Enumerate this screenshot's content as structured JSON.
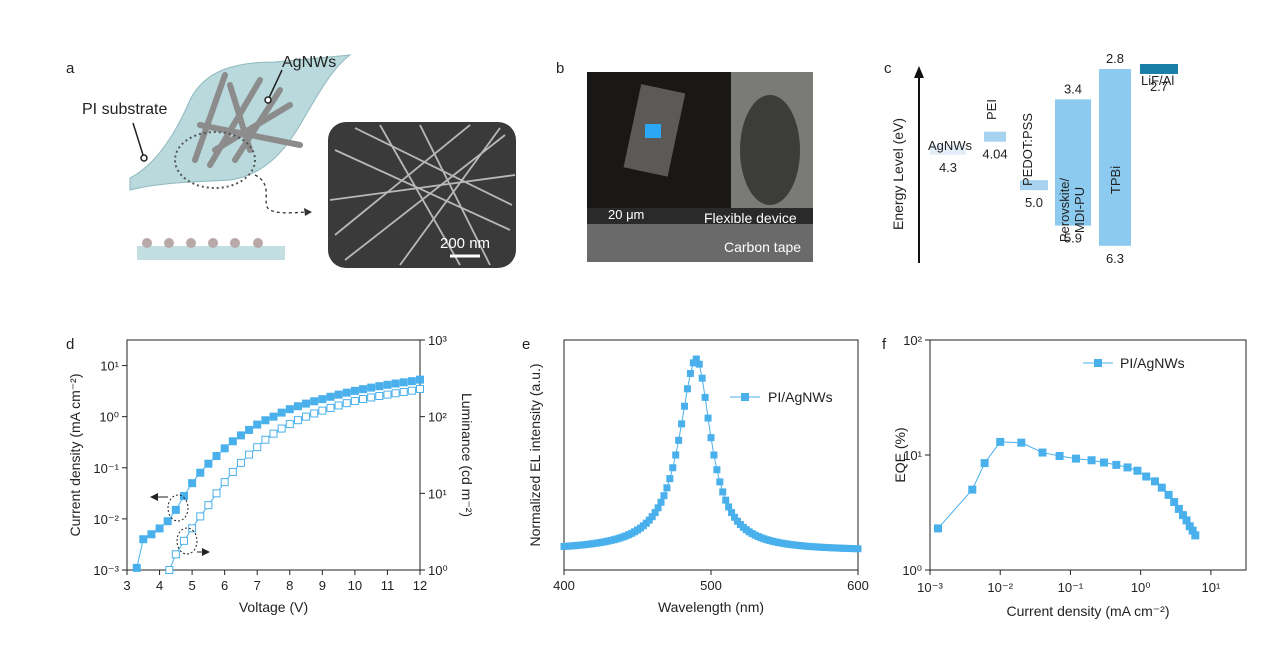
{
  "panels": {
    "a": {
      "label": "a",
      "agnws_label": "AgNWs",
      "pi_label": "PI substrate",
      "scalebar": "200 nm"
    },
    "b": {
      "label": "b",
      "scale_label": "20 μm",
      "device_label": "Flexible device",
      "tape_label": "Carbon tape"
    },
    "c": {
      "label": "c",
      "ylabel": "Energy Level (eV)",
      "layers": [
        {
          "name": "AgNWs",
          "top": 4.3,
          "bottom": null,
          "label_bottom": "4.3",
          "color": "#e3eef8"
        },
        {
          "name": "PEI",
          "top": 4.04,
          "bottom": null,
          "label_bottom": "4.04",
          "color": "#a8d3f0"
        },
        {
          "name": "PEDOT:PSS",
          "top": 5.0,
          "bottom": null,
          "label_bottom": "5.0",
          "color": "#a8d3f0"
        },
        {
          "name": "Perovskite/\nMDI-PU",
          "top": 3.4,
          "bottom": 5.9,
          "label_top": "3.4",
          "label_bottom": "5.9",
          "color": "#8ccaf0"
        },
        {
          "name": "TPBi",
          "top": 2.8,
          "bottom": 6.3,
          "label_top": "2.8",
          "label_bottom": "6.3",
          "color": "#8ccaf0"
        },
        {
          "name": "LiF/Al",
          "top": 2.7,
          "bottom": null,
          "label_bottom": "2.7",
          "color": "#1a7ea8"
        }
      ]
    }
  },
  "chart_data": [
    {
      "panel": "d",
      "type": "line",
      "xlabel": "Voltage (V)",
      "ylabel": "Current density (mA cm⁻²)",
      "y2label": "Luminance (cd m⁻²)",
      "xlim": [
        3,
        12
      ],
      "xticks": [
        "3",
        "4",
        "5",
        "6",
        "7",
        "8",
        "9",
        "10",
        "11",
        "12"
      ],
      "ylim_log": [
        -3,
        1.5
      ],
      "yticks": [
        "10⁻³",
        "10⁻²",
        "10⁻¹",
        "10⁰",
        "10¹"
      ],
      "y2lim_log": [
        0,
        3
      ],
      "y2ticks": [
        "10⁰",
        "10¹",
        "10²",
        "10³"
      ],
      "series": [
        {
          "axis": "left",
          "filled": true,
          "x": [
            3.3,
            3.5,
            3.75,
            4.0,
            4.25,
            4.5,
            4.75,
            5.0,
            5.25,
            5.5,
            5.75,
            6.0,
            6.25,
            6.5,
            6.75,
            7.0,
            7.25,
            7.5,
            7.75,
            8.0,
            8.25,
            8.5,
            8.75,
            9.0,
            9.25,
            9.5,
            9.75,
            10.0,
            10.25,
            10.5,
            10.75,
            11.0,
            11.25,
            11.5,
            11.75,
            12.0
          ],
          "y": [
            0.0011,
            0.004,
            0.005,
            0.0065,
            0.009,
            0.015,
            0.028,
            0.05,
            0.08,
            0.12,
            0.17,
            0.24,
            0.33,
            0.43,
            0.55,
            0.7,
            0.85,
            1.0,
            1.2,
            1.4,
            1.6,
            1.8,
            2.0,
            2.2,
            2.45,
            2.7,
            2.95,
            3.2,
            3.45,
            3.7,
            3.95,
            4.2,
            4.45,
            4.7,
            4.95,
            5.3
          ]
        },
        {
          "axis": "right",
          "filled": false,
          "x": [
            4.3,
            4.5,
            4.75,
            5.0,
            5.25,
            5.5,
            5.75,
            6.0,
            6.25,
            6.5,
            6.75,
            7.0,
            7.25,
            7.5,
            7.75,
            8.0,
            8.25,
            8.5,
            8.75,
            9.0,
            9.25,
            9.5,
            9.75,
            10.0,
            10.25,
            10.5,
            10.75,
            11.0,
            11.25,
            11.5,
            11.75,
            12.0
          ],
          "y": [
            1.0,
            1.6,
            2.4,
            3.5,
            5.0,
            7.0,
            10,
            14,
            19,
            25,
            32,
            40,
            50,
            60,
            70,
            80,
            90,
            100,
            110,
            120,
            130,
            140,
            150,
            160,
            170,
            178,
            186,
            194,
            202,
            210,
            218,
            230
          ]
        }
      ]
    },
    {
      "panel": "e",
      "type": "line",
      "xlabel": "Wavelength (nm)",
      "ylabel": "Normalized EL intensity (a.u.)",
      "xlim": [
        400,
        600
      ],
      "xticks": [
        "400",
        "500",
        "600"
      ],
      "peak_nm": 490,
      "series": [
        {
          "name": "PI/AgNWs"
        }
      ]
    },
    {
      "panel": "f",
      "type": "line",
      "xlabel": "Current density (mA cm⁻²)",
      "ylabel": "EQE (%)",
      "xlim_log": [
        -3,
        1.5
      ],
      "xticks": [
        "10⁻³",
        "10⁻²",
        "10⁻¹",
        "10⁰",
        "10¹"
      ],
      "ylim_log": [
        0,
        2
      ],
      "yticks": [
        "10⁰",
        "10¹",
        "10²"
      ],
      "series": [
        {
          "name": "PI/AgNWs",
          "x": [
            0.0013,
            0.004,
            0.006,
            0.01,
            0.02,
            0.04,
            0.07,
            0.12,
            0.2,
            0.3,
            0.45,
            0.65,
            0.9,
            1.2,
            1.6,
            2.0,
            2.5,
            3.0,
            3.5,
            4.0,
            4.5,
            5.0,
            5.5,
            6.0
          ],
          "y": [
            2.3,
            5.0,
            8.5,
            13.0,
            12.8,
            10.5,
            9.8,
            9.3,
            9.0,
            8.6,
            8.2,
            7.8,
            7.3,
            6.5,
            5.9,
            5.2,
            4.5,
            3.9,
            3.4,
            3.0,
            2.7,
            2.4,
            2.2,
            2.0
          ]
        }
      ]
    }
  ],
  "colors": {
    "accent": "#49b0ec",
    "dark": "#1a7ea8"
  }
}
